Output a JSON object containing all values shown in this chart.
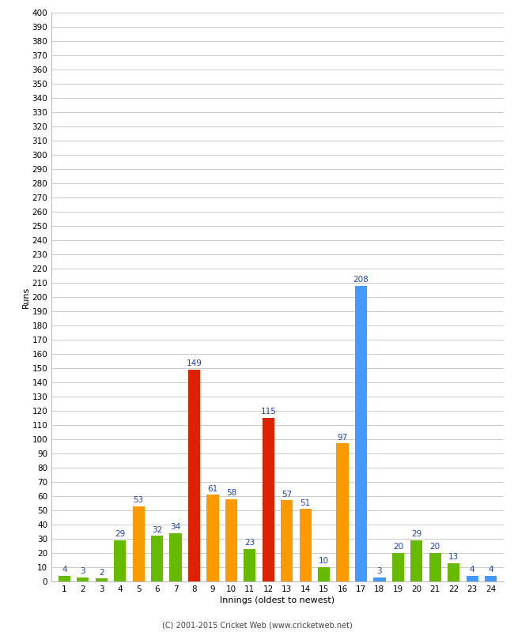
{
  "xlabel": "Innings (oldest to newest)",
  "ylabel": "Runs",
  "innings": [
    1,
    2,
    3,
    4,
    5,
    6,
    7,
    8,
    9,
    10,
    11,
    12,
    13,
    14,
    15,
    16,
    17,
    18,
    19,
    20,
    21,
    22,
    23,
    24
  ],
  "values": [
    4,
    3,
    2,
    29,
    53,
    32,
    34,
    149,
    61,
    58,
    23,
    115,
    57,
    51,
    10,
    97,
    208,
    3,
    20,
    29,
    20,
    13,
    4,
    4
  ],
  "colors": [
    "#66bb00",
    "#66bb00",
    "#66bb00",
    "#66bb00",
    "#ff9900",
    "#66bb00",
    "#66bb00",
    "#dd2200",
    "#ff9900",
    "#ff9900",
    "#66bb00",
    "#dd2200",
    "#ff9900",
    "#ff9900",
    "#66bb00",
    "#ff9900",
    "#4499ff",
    "#4499ff",
    "#66bb00",
    "#66bb00",
    "#66bb00",
    "#66bb00",
    "#4499ff",
    "#4499ff"
  ],
  "ylim": [
    0,
    400
  ],
  "ytick_step": 10,
  "background_color": "#ffffff",
  "grid_color": "#cccccc",
  "label_color": "#2244bb",
  "label_fontsize": 7.5,
  "tick_fontsize": 7.5,
  "ylabel_fontsize": 8,
  "xlabel_fontsize": 8,
  "bar_width": 0.65,
  "footer": "(C) 2001-2015 Cricket Web (www.cricketweb.net)"
}
